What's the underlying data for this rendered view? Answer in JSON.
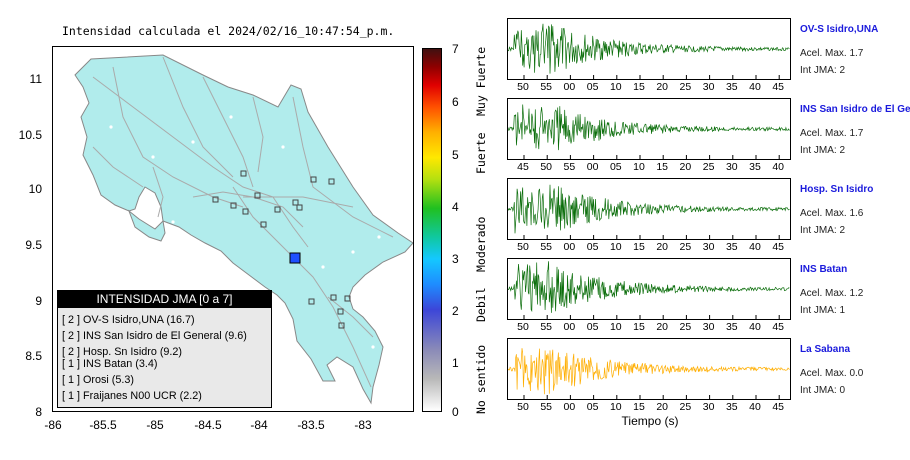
{
  "map": {
    "title": "Intensidad calculada el 2024/02/16_10:47:54_p.m.",
    "y_ticks": [
      "11",
      "10.5",
      "10",
      "9.5",
      "9",
      "8.5",
      "8"
    ],
    "x_ticks": [
      "-86",
      "-85.5",
      "-85",
      "-84.5",
      "-84",
      "-83.5",
      "-83"
    ],
    "colors": {
      "land": "#b1ecec",
      "epicenter": "#1e4fff",
      "roads": "#aaaaaa"
    }
  },
  "legend": {
    "header": "INTENSIDAD JMA [0 a 7]",
    "rows": [
      {
        "level": "[ 2 ]",
        "station": "OV-S Isidro,UNA (16.7)"
      },
      {
        "level": "[ 2 ]",
        "station": "INS San Isidro de El General (9.6)"
      },
      {
        "level": "[ 2 ]",
        "station": "Hosp. Sn Isidro (9.2)"
      },
      {
        "level": "[ 1 ]",
        "station": "INS Batan (3.4)"
      },
      {
        "level": "[ 1 ]",
        "station": "Orosi (5.3)"
      },
      {
        "level": "[ 1 ]",
        "station": "Fraijanes N00 UCR (2.2)"
      }
    ]
  },
  "colorbar": {
    "ticks": [
      "7",
      "6",
      "5",
      "4",
      "3",
      "2",
      "1",
      "0"
    ],
    "classes": [
      "Muy Fuerte",
      "Fuerte",
      "Moderado",
      "Debil",
      "No sentido"
    ]
  },
  "waveforms": {
    "time_label": "Tiempo (s)",
    "panels": [
      {
        "name": "OV-S Isidro,UNA",
        "acel": "Acel. Max. 1.7",
        "int": "Int JMA: 2",
        "color": "#0b6e0b",
        "ticks": [
          "50",
          "55",
          "00",
          "05",
          "10",
          "15",
          "20",
          "25",
          "30",
          "35",
          "40",
          "45"
        ]
      },
      {
        "name": "INS San Isidro de El Ge",
        "acel": "Acel. Max. 1.7",
        "int": "Int JMA: 2",
        "color": "#0b6e0b",
        "ticks": [
          "45",
          "50",
          "55",
          "00",
          "05",
          "10",
          "15",
          "20",
          "25",
          "30",
          "35",
          "40"
        ]
      },
      {
        "name": "Hosp. Sn Isidro",
        "acel": "Acel. Max. 1.6",
        "int": "Int JMA: 2",
        "color": "#0b6e0b",
        "ticks": [
          "50",
          "55",
          "00",
          "05",
          "10",
          "15",
          "20",
          "25",
          "30",
          "35",
          "40",
          "45"
        ]
      },
      {
        "name": "INS Batan",
        "acel": "Acel. Max. 1.2",
        "int": "Int JMA: 1",
        "color": "#0b6e0b",
        "ticks": [
          "50",
          "55",
          "00",
          "05",
          "10",
          "15",
          "20",
          "25",
          "30",
          "35",
          "40",
          "45"
        ]
      },
      {
        "name": "La Sabana",
        "acel": "Acel. Max. 0.0",
        "int": "Int JMA: 0",
        "color": "#ffae00",
        "ticks": [
          "50",
          "55",
          "00",
          "05",
          "10",
          "15",
          "20",
          "25",
          "30",
          "35",
          "40",
          "45"
        ]
      }
    ]
  }
}
